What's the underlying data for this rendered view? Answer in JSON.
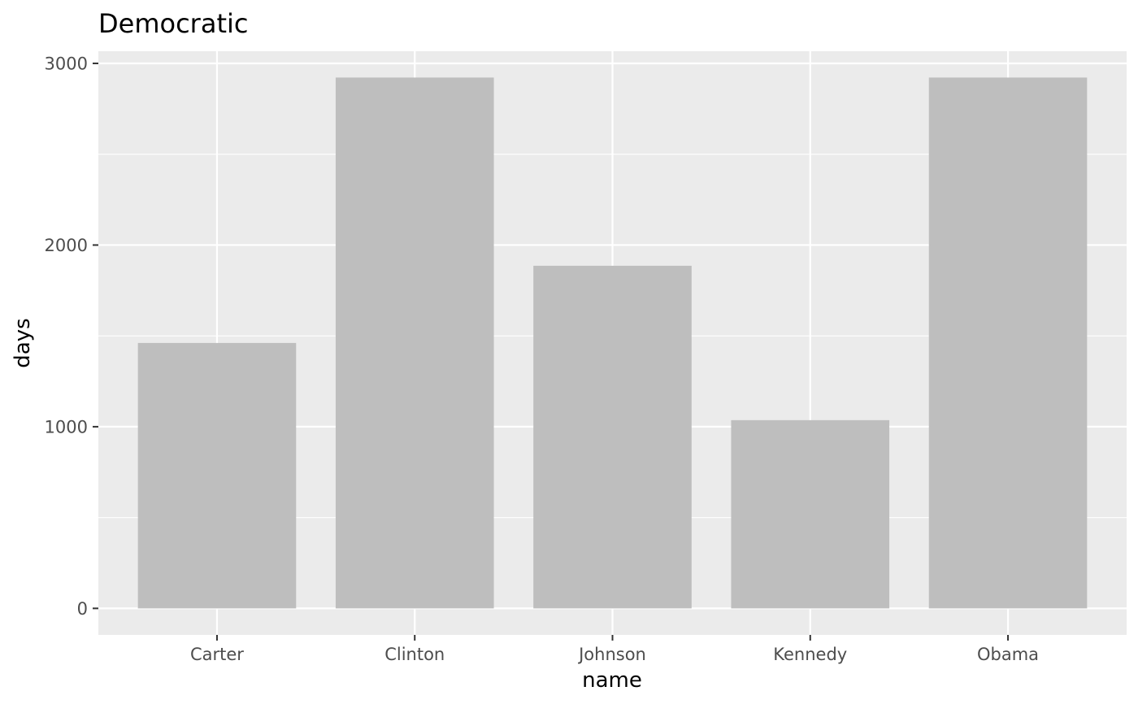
{
  "chart_data": {
    "type": "bar",
    "title": "Democratic",
    "xlabel": "name",
    "ylabel": "days",
    "categories": [
      "Carter",
      "Clinton",
      "Johnson",
      "Kennedy",
      "Obama"
    ],
    "values": [
      1461,
      2922,
      1886,
      1036,
      2922
    ],
    "ylim": [
      -146,
      3067
    ],
    "yticks": [
      0,
      1000,
      2000,
      3000
    ],
    "yticks_labels": [
      "0",
      "1000",
      "2000",
      "3000"
    ],
    "grid": true,
    "legend": "none",
    "colors": {
      "bar": "#bebebe",
      "panel": "#ebebeb",
      "gridline": "#ffffff",
      "tick": "#333333"
    }
  }
}
